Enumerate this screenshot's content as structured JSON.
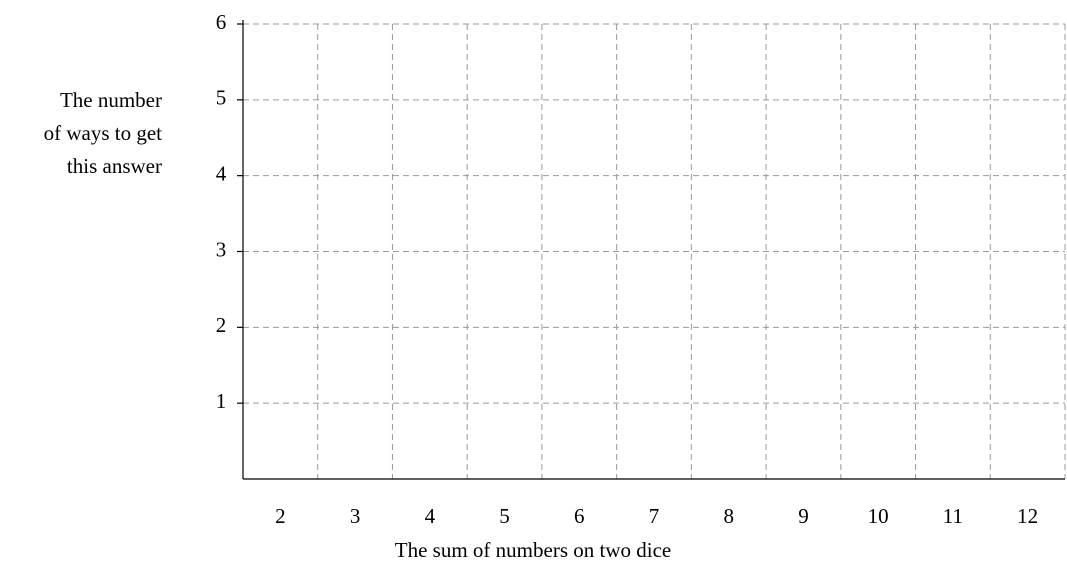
{
  "chart_data": {
    "type": "bar",
    "x_label": "The sum of numbers on two dice",
    "y_label": [
      "The number",
      "of ways to get",
      "this answer"
    ],
    "categories": [
      "2",
      "3",
      "4",
      "5",
      "6",
      "7",
      "8",
      "9",
      "10",
      "11",
      "12"
    ],
    "ylim": [
      0,
      6
    ],
    "yticks": [
      1,
      2,
      3,
      4,
      5,
      6
    ],
    "grid": true
  }
}
